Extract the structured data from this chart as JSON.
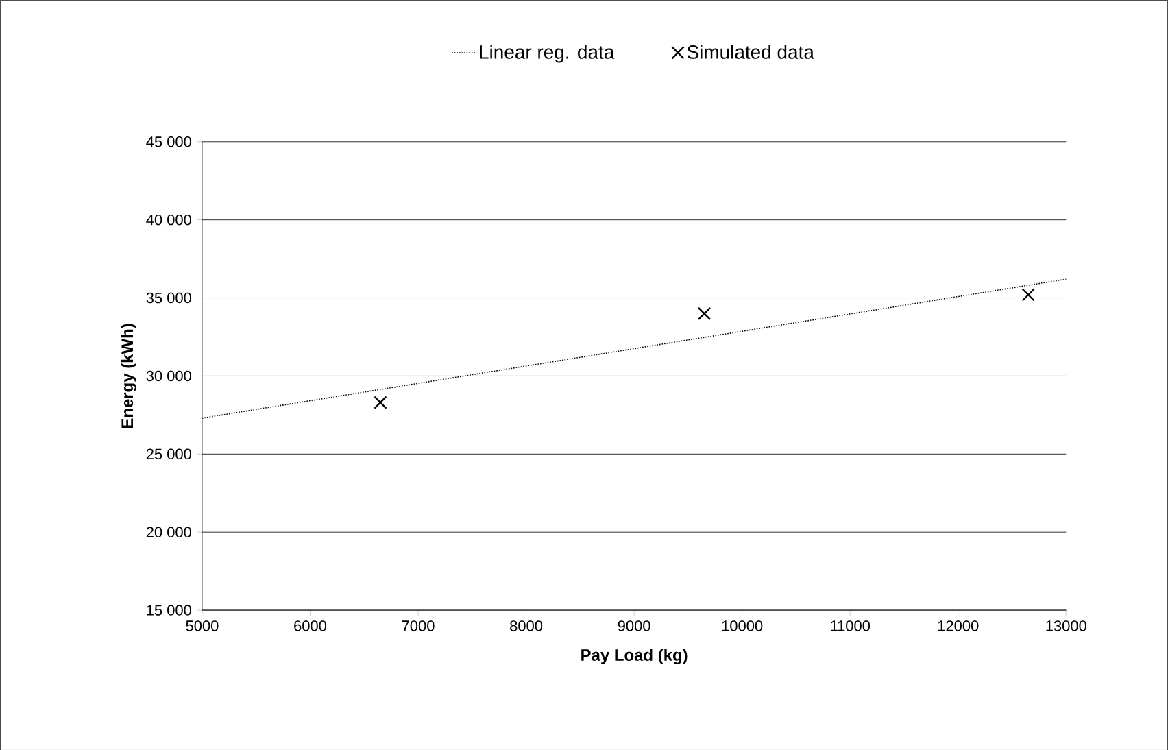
{
  "chart_data": {
    "type": "scatter",
    "xlabel": "Pay Load (kg)",
    "ylabel": "Energy (kWh)",
    "xlim": [
      5000,
      13000
    ],
    "xticks": [
      5000,
      6000,
      7000,
      8000,
      9000,
      10000,
      11000,
      12000,
      13000
    ],
    "ylim": [
      15000,
      45000
    ],
    "yticks": [
      {
        "value": 15000,
        "label": "15 000"
      },
      {
        "value": 20000,
        "label": "20 000"
      },
      {
        "value": 25000,
        "label": "25 000"
      },
      {
        "value": 30000,
        "label": "30 000"
      },
      {
        "value": 35000,
        "label": "35 000"
      },
      {
        "value": 40000,
        "label": "40 000"
      },
      {
        "value": 45000,
        "label": "45 000"
      }
    ],
    "grid": "y",
    "legend": "top",
    "series": [
      {
        "name": "Linear reg. data",
        "type": "line",
        "color": "#000000",
        "marker": "none",
        "line_style": "dotted",
        "x": [
          5000,
          13000
        ],
        "values": [
          27300,
          36200
        ]
      },
      {
        "name": "Simulated data",
        "color": "#000000",
        "marker": "cross",
        "line_style": "none",
        "x": [
          6650,
          9650,
          12650
        ],
        "values": [
          28300,
          34000,
          35200
        ]
      }
    ]
  }
}
